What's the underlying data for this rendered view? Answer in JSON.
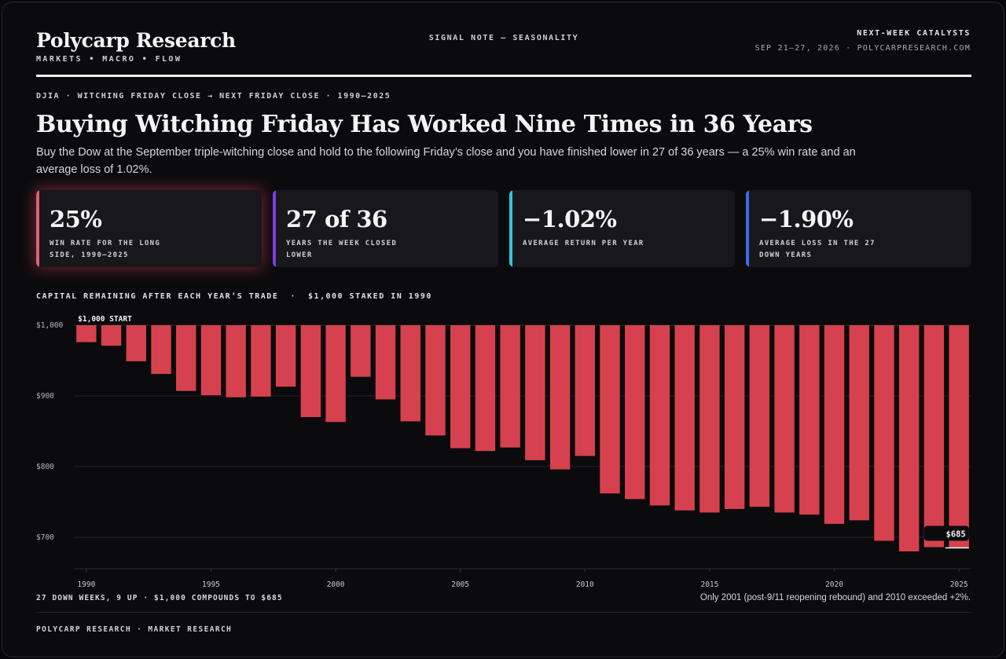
{
  "header": {
    "brand": "Polycarp Research",
    "tagline": "MARKETS • MACRO • FLOW",
    "center": "SIGNAL NOTE — SEASONALITY",
    "right_title": "NEXT-WEEK CATALYSTS",
    "right_sub": "SEP 21–27, 2026 · POLYCARPRESEARCH.COM"
  },
  "kicker": "DJIA · WITCHING FRIDAY CLOSE → NEXT FRIDAY CLOSE · 1990–2025",
  "headline": "Buying Witching Friday Has Worked Nine Times in 36 Years",
  "dek": "Buy the Dow at the September triple-witching close and hold to the following Friday’s close and you have finished lower in 27 of 36 years — a 25% win rate and an average loss of 1.02%.",
  "cards": [
    {
      "value": "25%",
      "label": "WIN RATE FOR THE LONG SIDE, 1990–2025",
      "accent": "#e0606e"
    },
    {
      "value": "27 of 36",
      "label": "YEARS THE WEEK CLOSED LOWER",
      "accent": "#7b3fe4"
    },
    {
      "value": "−1.02%",
      "label": "AVERAGE RETURN PER YEAR",
      "accent": "#2ec7e0"
    },
    {
      "value": "−1.90%",
      "label": "AVERAGE LOSS IN THE 27 DOWN YEARS",
      "accent": "#3a6ee8"
    }
  ],
  "chart_title": "CAPITAL REMAINING AFTER EACH YEAR’S TRADE  ·  $1,000 STAKED IN 1990",
  "chart_data": {
    "type": "bar",
    "baseline": 1000,
    "ylim": [
      655,
      1000
    ],
    "y_ticks": [
      1000,
      900,
      800,
      700
    ],
    "y_tick_labels": [
      "$1,000",
      "$900",
      "$800",
      "$700"
    ],
    "x_ticks": [
      1990,
      1995,
      2000,
      2005,
      2010,
      2015,
      2020,
      2025
    ],
    "categories": [
      1990,
      1991,
      1992,
      1993,
      1994,
      1995,
      1996,
      1997,
      1998,
      1999,
      2000,
      2001,
      2002,
      2003,
      2004,
      2005,
      2006,
      2007,
      2008,
      2009,
      2010,
      2011,
      2012,
      2013,
      2014,
      2015,
      2016,
      2017,
      2018,
      2019,
      2020,
      2021,
      2022,
      2023,
      2024,
      2025
    ],
    "values": [
      976,
      971,
      949,
      931,
      907,
      901,
      898,
      899,
      913,
      870,
      863,
      927,
      895,
      864,
      844,
      826,
      822,
      827,
      809,
      796,
      815,
      762,
      754,
      745,
      738,
      735,
      740,
      743,
      735,
      732,
      719,
      724,
      695,
      680,
      686,
      685
    ],
    "annotations": [
      {
        "text": "$1,000 START",
        "at": 1990
      },
      {
        "text": "$685",
        "at": 2025
      }
    ],
    "bar_color": "#d6414f",
    "grid": true
  },
  "footer": {
    "left": "27 DOWN WEEKS, 9 UP · $1,000 COMPOUNDS TO $685",
    "right": "Only 2001 (post-9/11 reopening rebound) and 2010 exceeded +2%.",
    "colophon": "POLYCARP RESEARCH · MARKET RESEARCH"
  }
}
